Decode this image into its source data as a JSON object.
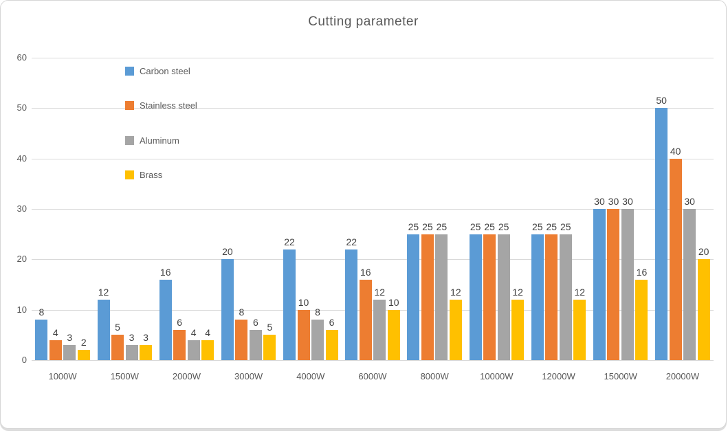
{
  "chart_data": {
    "type": "bar",
    "title": "Cutting parameter",
    "categories": [
      "1000W",
      "1500W",
      "2000W",
      "3000W",
      "4000W",
      "6000W",
      "8000W",
      "10000W",
      "12000W",
      "15000W",
      "20000W"
    ],
    "series": [
      {
        "name": "Carbon steel",
        "color": "#5B9BD5",
        "values": [
          8,
          12,
          16,
          20,
          22,
          22,
          25,
          25,
          25,
          30,
          50
        ]
      },
      {
        "name": "Stainless steel",
        "color": "#ED7D31",
        "values": [
          4,
          5,
          6,
          8,
          10,
          16,
          25,
          25,
          25,
          30,
          40
        ]
      },
      {
        "name": "Aluminum",
        "color": "#A5A5A5",
        "values": [
          3,
          3,
          4,
          6,
          8,
          12,
          25,
          25,
          25,
          30,
          30
        ]
      },
      {
        "name": "Brass",
        "color": "#FFC000",
        "values": [
          2,
          3,
          4,
          5,
          6,
          10,
          12,
          12,
          12,
          16,
          20
        ]
      }
    ],
    "y_ticks": [
      0,
      10,
      20,
      30,
      40,
      50,
      60
    ],
    "ylim": [
      0,
      60
    ],
    "xlabel": "",
    "ylabel": "",
    "grid": true,
    "data_labels": true,
    "legend_position": "inside-top-left",
    "colors": {
      "title_text": "#595959",
      "axis_text": "#595959",
      "data_label_text": "#404040",
      "gridline": "#d9d9d9",
      "background": "#ffffff",
      "border": "#d6d6d6"
    }
  }
}
